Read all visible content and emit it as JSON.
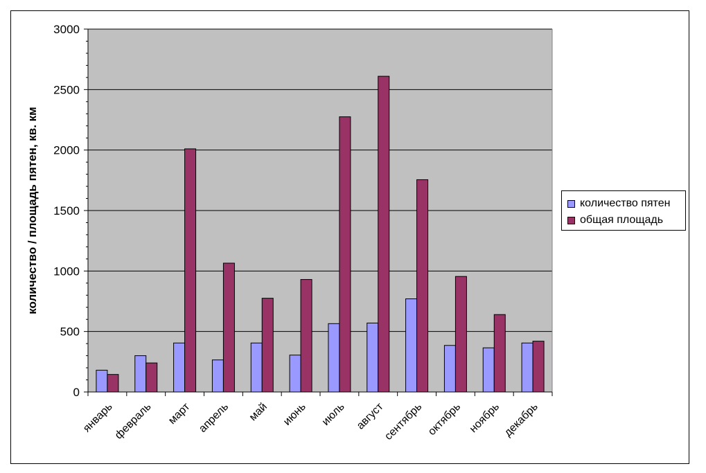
{
  "chart_data": {
    "type": "bar",
    "categories": [
      "январь",
      "февраль",
      "март",
      "апрель",
      "май",
      "июнь",
      "июль",
      "август",
      "сентябрь",
      "октябрь",
      "ноябрь",
      "декабрь"
    ],
    "series": [
      {
        "name": "количество пятен",
        "color": "#9999ff",
        "values": [
          180,
          300,
          405,
          265,
          405,
          305,
          565,
          570,
          770,
          385,
          365,
          405
        ]
      },
      {
        "name": "общая площадь",
        "color": "#993366",
        "values": [
          145,
          240,
          2010,
          1065,
          775,
          930,
          2275,
          2610,
          1755,
          955,
          640,
          420
        ]
      }
    ],
    "ylabel": "количество / площадь пятен,  кв. км",
    "ylim": [
      0,
      3000
    ],
    "yticks": [
      "0",
      "500",
      "1000",
      "1500",
      "2000",
      "2500",
      "3000"
    ],
    "grid": true,
    "plot_background": "#c0c0c0",
    "legend_position": "right"
  }
}
